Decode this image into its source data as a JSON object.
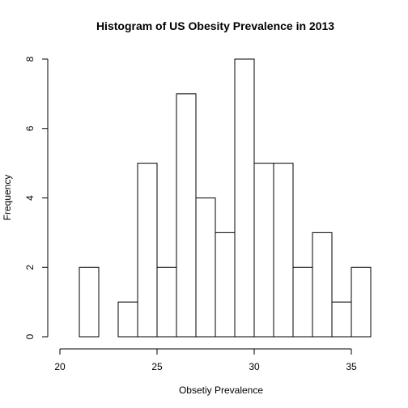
{
  "chart_data": {
    "type": "bar",
    "title": "Histogram of US Obesity Prevalence in 2013",
    "xlabel": "Obsetiy Prevalence",
    "ylabel": "Frequency",
    "bins": [
      {
        "from": 21,
        "to": 22,
        "count": 2
      },
      {
        "from": 22,
        "to": 23,
        "count": 0
      },
      {
        "from": 23,
        "to": 24,
        "count": 1
      },
      {
        "from": 24,
        "to": 25,
        "count": 5
      },
      {
        "from": 25,
        "to": 26,
        "count": 2
      },
      {
        "from": 26,
        "to": 27,
        "count": 7
      },
      {
        "from": 27,
        "to": 28,
        "count": 4
      },
      {
        "from": 28,
        "to": 29,
        "count": 3
      },
      {
        "from": 29,
        "to": 30,
        "count": 8
      },
      {
        "from": 30,
        "to": 31,
        "count": 5
      },
      {
        "from": 31,
        "to": 32,
        "count": 5
      },
      {
        "from": 32,
        "to": 33,
        "count": 2
      },
      {
        "from": 33,
        "to": 34,
        "count": 3
      },
      {
        "from": 34,
        "to": 35,
        "count": 1
      },
      {
        "from": 35,
        "to": 36,
        "count": 2
      }
    ],
    "xlim": [
      20,
      36
    ],
    "ylim": [
      0,
      8
    ],
    "x_ticks": [
      20,
      25,
      30,
      35
    ],
    "y_ticks": [
      0,
      2,
      4,
      6,
      8
    ],
    "grid": false,
    "legend": "none",
    "colors": {
      "bar_fill": "#ffffff",
      "bar_stroke": "#000000"
    }
  }
}
